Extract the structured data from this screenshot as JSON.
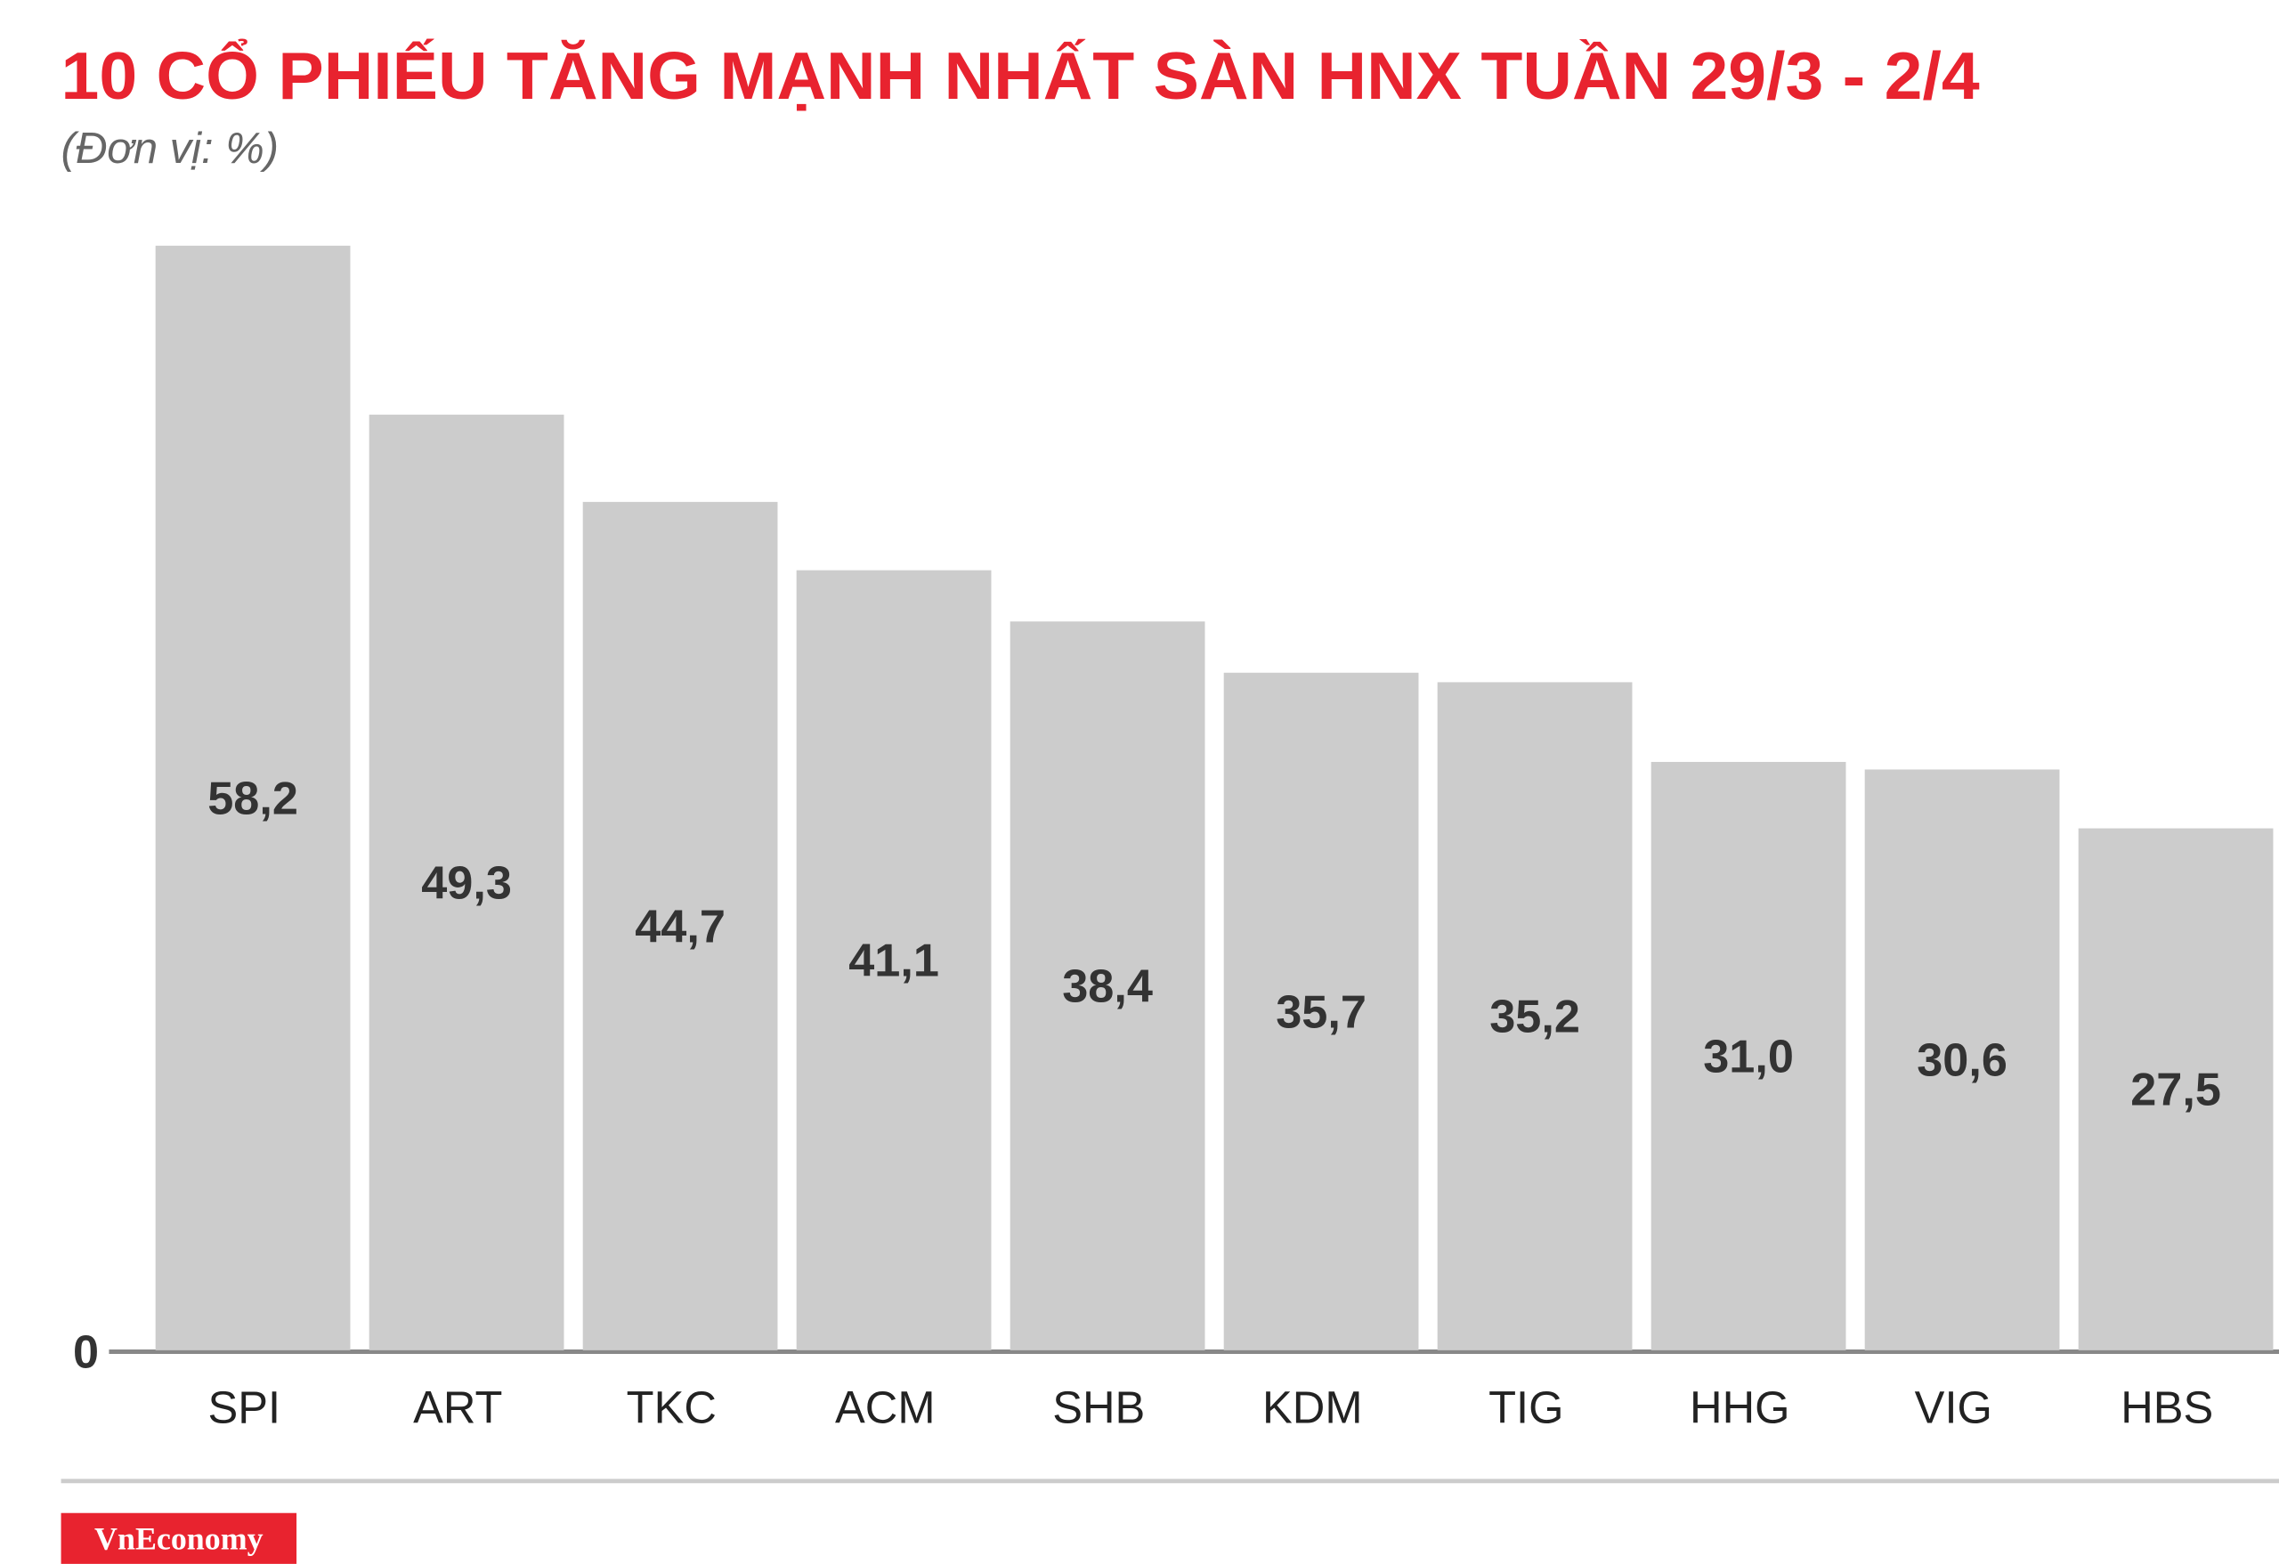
{
  "chart_data": {
    "type": "bar",
    "title": "10 CỔ PHIẾU TĂNG MẠNH NHẤT SÀN HNX TUẦN 29/3 - 2/4",
    "subtitle": "(Đơn vị: %)",
    "categories": [
      "SPI",
      "ART",
      "TKC",
      "ACM",
      "SHB",
      "KDM",
      "TIG",
      "HHG",
      "VIG",
      "HBS"
    ],
    "values": [
      58.2,
      49.3,
      44.7,
      41.1,
      38.4,
      35.7,
      35.2,
      31.0,
      30.6,
      27.5
    ],
    "value_labels": [
      "58,2",
      "49,3",
      "44,7",
      "41,1",
      "38,4",
      "35,7",
      "35,2",
      "31,0",
      "30,6",
      "27,5"
    ],
    "color": "#cccccc",
    "ylim": [
      0,
      58.2
    ],
    "yticks": [
      0
    ],
    "grid": false
  },
  "footer": {
    "logo": "VnEconomy"
  }
}
